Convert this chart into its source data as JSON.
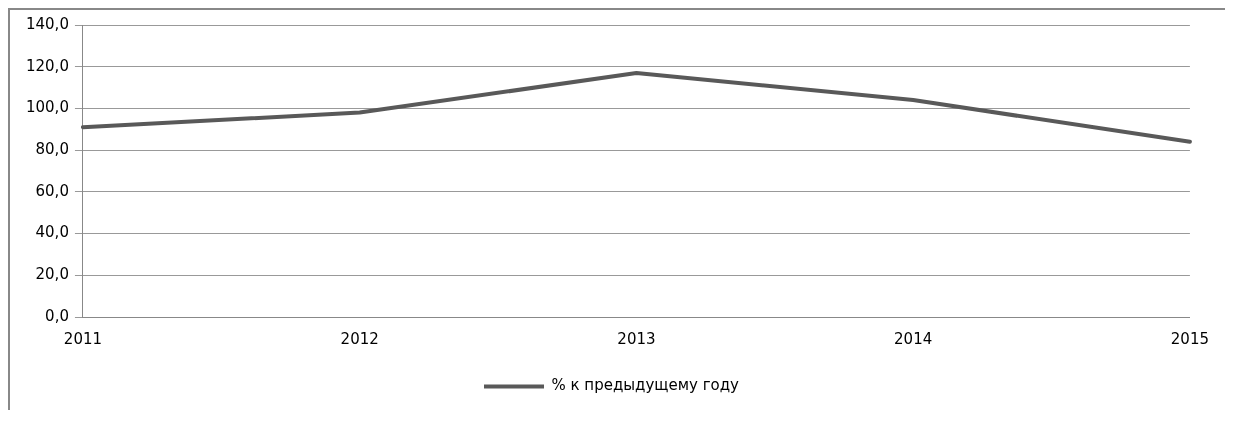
{
  "chart_data": {
    "type": "line",
    "categories": [
      "2011",
      "2012",
      "2013",
      "2014",
      "2015"
    ],
    "series": [
      {
        "name": "% к предыдущему году",
        "color": "#595959",
        "values": [
          91,
          98,
          117,
          104,
          84
        ]
      }
    ],
    "ylim": [
      0,
      140
    ],
    "yticks": [
      {
        "value": 0,
        "label": "0,0"
      },
      {
        "value": 20,
        "label": "20,0"
      },
      {
        "value": 40,
        "label": "40,0"
      },
      {
        "value": 60,
        "label": "60,0"
      },
      {
        "value": 80,
        "label": "80,0"
      },
      {
        "value": 100,
        "label": "100,0"
      },
      {
        "value": 120,
        "label": "120,0"
      },
      {
        "value": 140,
        "label": "140,0"
      }
    ],
    "grid": "y",
    "legend": "bottom",
    "marker": "none",
    "line_style": "solid"
  }
}
